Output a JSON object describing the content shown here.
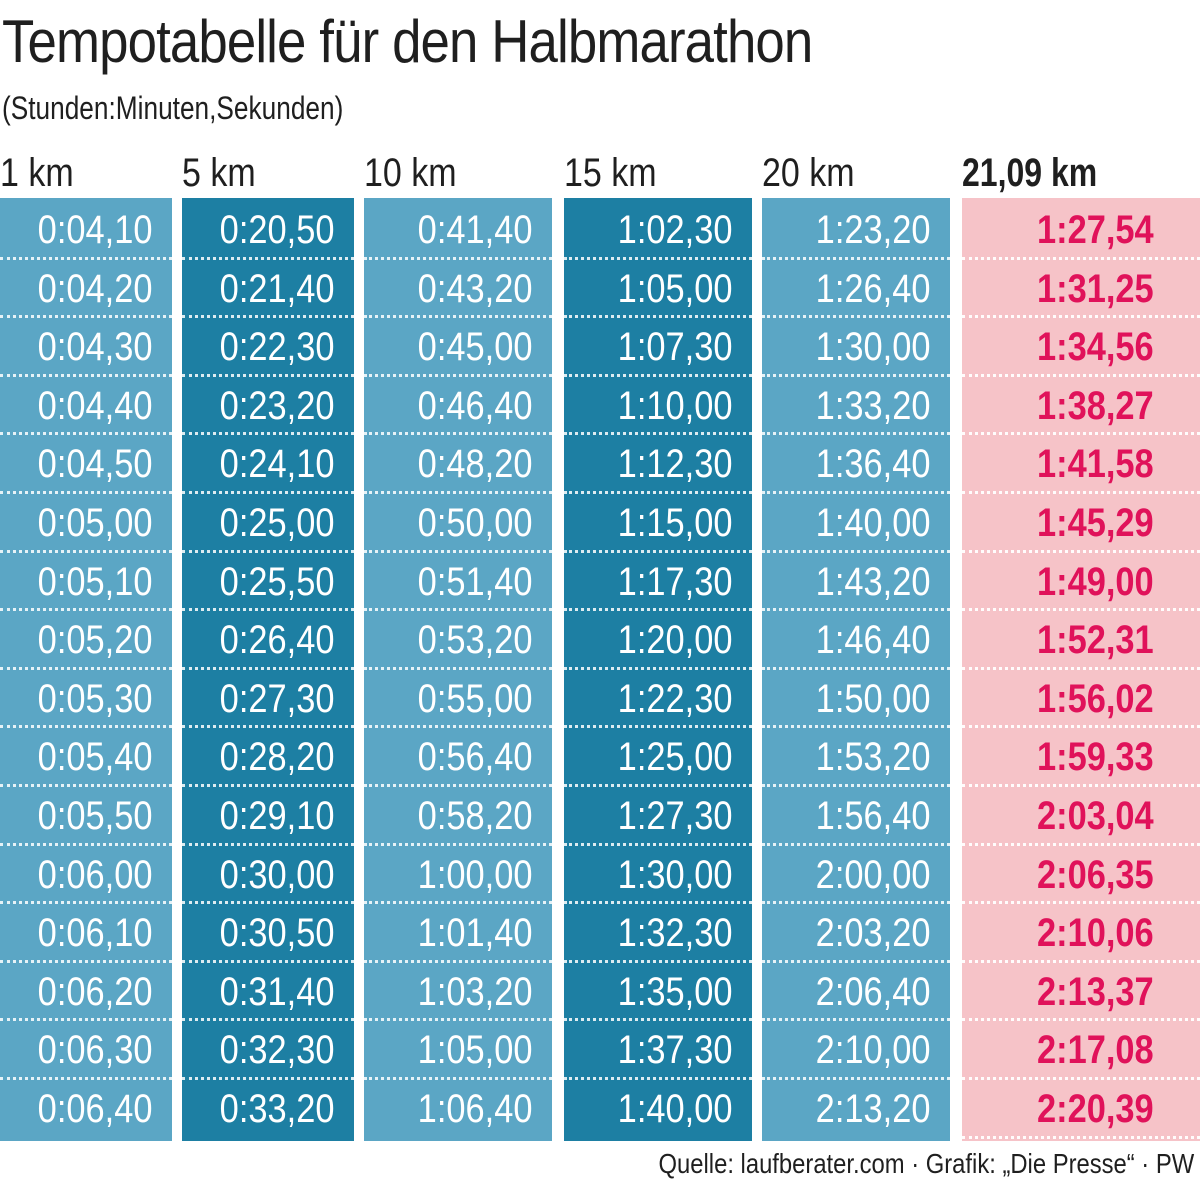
{
  "title": "Tempotabelle für den Halbmarathon",
  "subtitle": "(Stunden:Minuten,Sekunden)",
  "source": "Quelle: laufberater.com · Grafik: „Die Presse“ · PW",
  "colors": {
    "light_blue": "#5ba6c5",
    "dark_blue": "#1d7fa3",
    "pink": "#f6c3c8",
    "highlight_text": "#e0125a"
  },
  "chart_data": {
    "type": "table",
    "title": "Tempotabelle für den Halbmarathon",
    "columns": [
      {
        "header": "1 km",
        "values": [
          "0:04,10",
          "0:04,20",
          "0:04,30",
          "0:04,40",
          "0:04,50",
          "0:05,00",
          "0:05,10",
          "0:05,20",
          "0:05,30",
          "0:05,40",
          "0:05,50",
          "0:06,00",
          "0:06,10",
          "0:06,20",
          "0:06,30",
          "0:06,40"
        ]
      },
      {
        "header": "5 km",
        "values": [
          "0:20,50",
          "0:21,40",
          "0:22,30",
          "0:23,20",
          "0:24,10",
          "0:25,00",
          "0:25,50",
          "0:26,40",
          "0:27,30",
          "0:28,20",
          "0:29,10",
          "0:30,00",
          "0:30,50",
          "0:31,40",
          "0:32,30",
          "0:33,20"
        ]
      },
      {
        "header": "10 km",
        "values": [
          "0:41,40",
          "0:43,20",
          "0:45,00",
          "0:46,40",
          "0:48,20",
          "0:50,00",
          "0:51,40",
          "0:53,20",
          "0:55,00",
          "0:56,40",
          "0:58,20",
          "1:00,00",
          "1:01,40",
          "1:03,20",
          "1:05,00",
          "1:06,40"
        ]
      },
      {
        "header": "15 km",
        "values": [
          "1:02,30",
          "1:05,00",
          "1:07,30",
          "1:10,00",
          "1:12,30",
          "1:15,00",
          "1:17,30",
          "1:20,00",
          "1:22,30",
          "1:25,00",
          "1:27,30",
          "1:30,00",
          "1:32,30",
          "1:35,00",
          "1:37,30",
          "1:40,00"
        ]
      },
      {
        "header": "20 km",
        "values": [
          "1:23,20",
          "1:26,40",
          "1:30,00",
          "1:33,20",
          "1:36,40",
          "1:40,00",
          "1:43,20",
          "1:46,40",
          "1:50,00",
          "1:53,20",
          "1:56,40",
          "2:00,00",
          "2:03,20",
          "2:06,40",
          "2:10,00",
          "2:13,20"
        ]
      },
      {
        "header": "21,09 km",
        "values": [
          "1:27,54",
          "1:31,25",
          "1:34,56",
          "1:38,27",
          "1:41,58",
          "1:45,29",
          "1:49,00",
          "1:52,31",
          "1:56,02",
          "1:59,33",
          "2:03,04",
          "2:06,35",
          "2:10,06",
          "2:13,37",
          "2:17,08",
          "2:20,39"
        ]
      }
    ]
  }
}
